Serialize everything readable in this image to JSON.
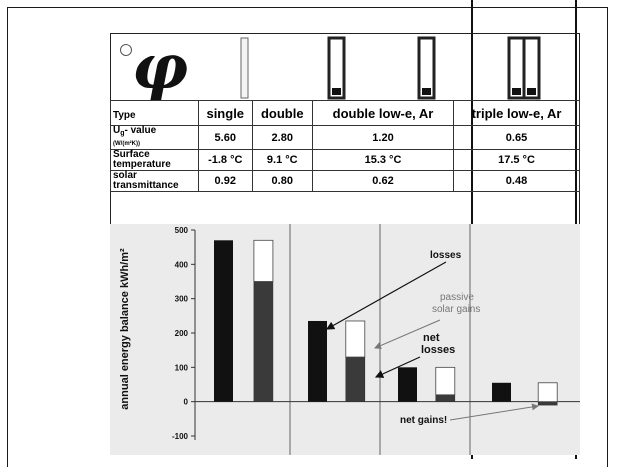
{
  "header": {
    "type_label": "Type",
    "u_label_main": "U",
    "u_label_sub": "g",
    "u_label_rest": "- value",
    "u_unit": "(W/(m²K))",
    "surface_label": "Surface temperature",
    "solar_label": "solar transmittance"
  },
  "columns": [
    {
      "type": "single",
      "u_value": "5.60",
      "surface_temp": "-1.8 °C",
      "solar": "0.92"
    },
    {
      "type": "double",
      "u_value": "2.80",
      "surface_temp": "9.1 °C",
      "solar": "0.80"
    },
    {
      "type": "double low-e, Ar",
      "u_value": "1.20",
      "surface_temp": "15.3 °C",
      "solar": "0.62"
    },
    {
      "type": "triple low-e, Ar",
      "u_value": "0.65",
      "surface_temp": "17.5 °C",
      "solar": "0.48"
    }
  ],
  "chart_data": {
    "type": "bar",
    "ylabel": "annual energy balance kWh/m²",
    "ylim": [
      -100,
      500
    ],
    "yticks": [
      -100,
      0,
      100,
      200,
      300,
      400,
      500
    ],
    "categories": [
      "single",
      "double",
      "double low-e, Ar",
      "triple low-e, Ar"
    ],
    "series": [
      {
        "name": "losses",
        "values": [
          470,
          235,
          100,
          55
        ]
      },
      {
        "name": "net losses",
        "values": [
          350,
          130,
          20,
          -10
        ]
      },
      {
        "name": "passive solar gains",
        "values": [
          120,
          105,
          80,
          65
        ]
      }
    ],
    "annotations": [
      "losses",
      "passive solar gains",
      "net losses",
      "net gains!"
    ],
    "grid": false,
    "colors": {
      "losses": "#111111",
      "net": "#3a3a3a",
      "gains": "#ffffff",
      "panel": "#ebebeb"
    }
  }
}
